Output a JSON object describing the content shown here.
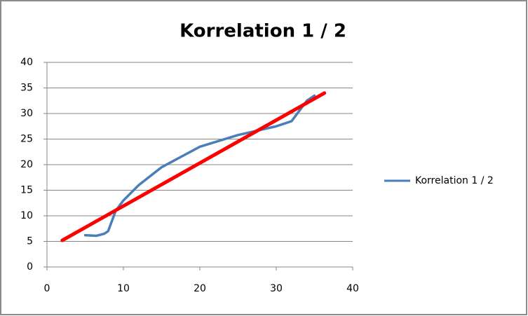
{
  "chart_data": {
    "type": "scatter-line",
    "title": "Korrelation 1 / 2",
    "series": [
      {
        "name": "Korrelation 1 / 2",
        "color": "#4a7ebb",
        "x": [
          5,
          6.5,
          7.5,
          8,
          9,
          10,
          12,
          15,
          20,
          25,
          30,
          32,
          34,
          35
        ],
        "values": [
          6.2,
          6.1,
          6.5,
          7,
          11,
          13,
          16,
          19.5,
          23.5,
          25.8,
          27.5,
          28.5,
          32.5,
          33.5
        ]
      },
      {
        "color": "#ff0000",
        "x": [
          2,
          36.3
        ],
        "values": [
          5.2,
          34
        ]
      }
    ],
    "xlim": [
      0,
      40
    ],
    "xticks": [
      0,
      10,
      20,
      30,
      40
    ],
    "ylim": [
      0,
      40
    ],
    "yticks": [
      0,
      5,
      10,
      15,
      20,
      25,
      30,
      35,
      40
    ],
    "grid": true,
    "legend": "right"
  }
}
